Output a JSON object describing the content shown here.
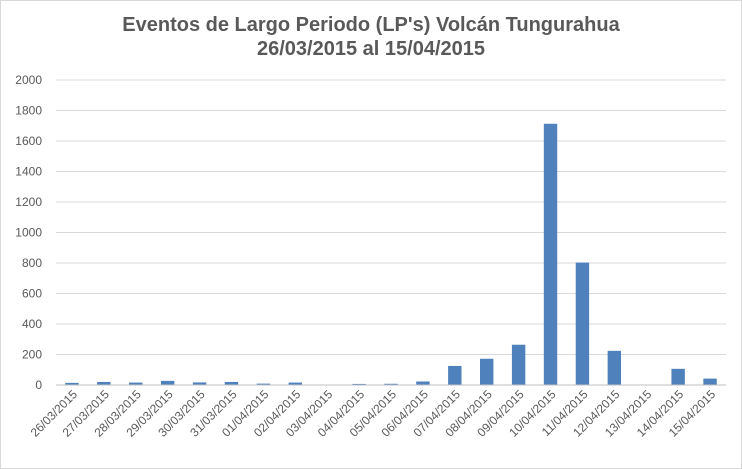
{
  "chart_data": {
    "type": "bar",
    "title": "Eventos de Largo Periodo (LP's) Volcán Tungurahua",
    "subtitle": "26/03/2015 al 15/04/2015",
    "xlabel": "",
    "ylabel": "",
    "ylim": [
      0,
      2000
    ],
    "yticks": [
      "0",
      "200",
      "400",
      "600",
      "800",
      "1000",
      "1200",
      "1400",
      "1600",
      "1800",
      "2000"
    ],
    "grid": true,
    "legend": "none",
    "bar_color": "#4f81bd",
    "categories": [
      "26/03/2015",
      "27/03/2015",
      "28/03/2015",
      "29/03/2015",
      "30/03/2015",
      "31/03/2015",
      "01/04/2015",
      "02/04/2015",
      "03/04/2015",
      "04/04/2015",
      "05/04/2015",
      "06/04/2015",
      "07/04/2015",
      "08/04/2015",
      "09/04/2015",
      "10/04/2015",
      "11/04/2015",
      "12/04/2015",
      "13/04/2015",
      "14/04/2015",
      "15/04/2015"
    ],
    "values": [
      14,
      20,
      16,
      27,
      17,
      20,
      9,
      16,
      0,
      7,
      8,
      23,
      125,
      172,
      264,
      1713,
      803,
      224,
      0,
      106,
      42
    ]
  }
}
